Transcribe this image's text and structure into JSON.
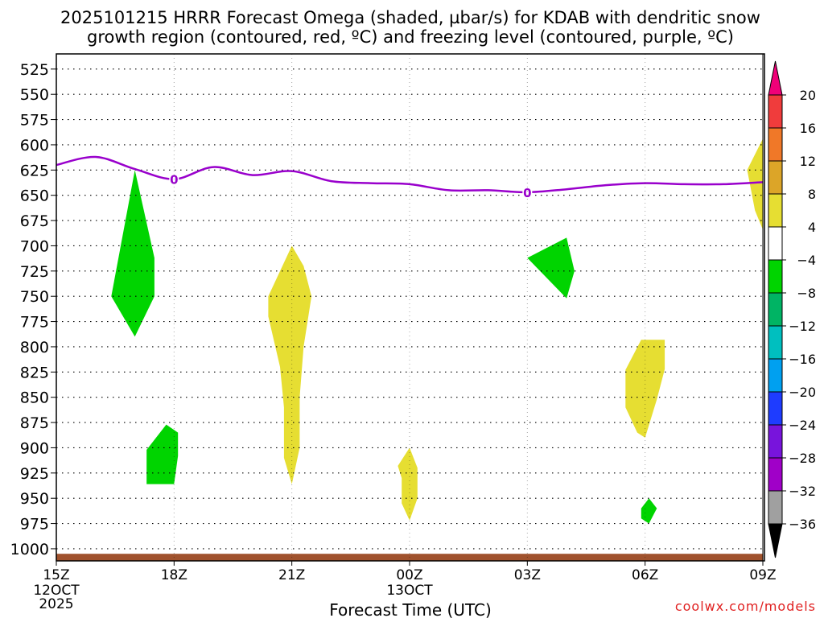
{
  "chart_data": {
    "type": "heatmap",
    "title_line1": "2025101215 HRRR Forecast Omega (shaded, µbar/s) for KDAB with dendritic snow",
    "title_line2": "growth region (contoured, red, ºC) and freezing level (contoured, purple, ºC)",
    "xlabel": "Forecast Time (UTC)",
    "credit": "coolwx.com/models",
    "x_range_hours": [
      0,
      18
    ],
    "y_range_hpa": [
      510,
      1012
    ],
    "x_ticks": [
      {
        "hour": 0,
        "label": "15Z",
        "date": "12OCT",
        "year": "2025"
      },
      {
        "hour": 3,
        "label": "18Z"
      },
      {
        "hour": 6,
        "label": "21Z"
      },
      {
        "hour": 9,
        "label": "00Z",
        "date": "13OCT"
      },
      {
        "hour": 12,
        "label": "03Z"
      },
      {
        "hour": 15,
        "label": "06Z"
      },
      {
        "hour": 18,
        "label": "09Z"
      }
    ],
    "pressure_levels": [
      525,
      550,
      575,
      600,
      625,
      650,
      675,
      700,
      725,
      750,
      775,
      800,
      825,
      850,
      875,
      900,
      925,
      950,
      975,
      1000
    ],
    "freezing_level": {
      "label": "0",
      "label_hours": [
        3,
        12
      ],
      "color": "#9900cc",
      "points": [
        [
          0,
          620
        ],
        [
          1,
          612
        ],
        [
          2,
          624
        ],
        [
          3,
          634
        ],
        [
          4,
          622
        ],
        [
          5,
          630
        ],
        [
          6,
          626
        ],
        [
          7,
          636
        ],
        [
          8,
          638
        ],
        [
          9,
          639
        ],
        [
          10,
          645
        ],
        [
          11,
          645
        ],
        [
          12,
          647
        ],
        [
          13,
          644
        ],
        [
          14,
          640
        ],
        [
          15,
          638
        ],
        [
          16,
          639
        ],
        [
          17,
          639
        ],
        [
          18,
          637
        ]
      ]
    },
    "omega_regions": [
      {
        "name": "green-upward-a",
        "bin": "-8 to -4",
        "color": "#00d400",
        "points": [
          [
            1.4,
            750
          ],
          [
            2.0,
            625
          ],
          [
            2.5,
            712
          ],
          [
            2.5,
            750
          ],
          [
            2.0,
            790
          ]
        ]
      },
      {
        "name": "green-upward-b",
        "bin": "-8 to -4",
        "color": "#00d400",
        "points": [
          [
            2.3,
            902
          ],
          [
            2.8,
            877
          ],
          [
            3.1,
            885
          ],
          [
            3.1,
            908
          ],
          [
            3.0,
            936
          ],
          [
            2.3,
            936
          ]
        ]
      },
      {
        "name": "yellow-downward-a",
        "bin": "4 to 8",
        "color": "#e6de32",
        "points": [
          [
            5.4,
            750
          ],
          [
            6.0,
            700
          ],
          [
            6.3,
            720
          ],
          [
            6.5,
            750
          ],
          [
            6.3,
            800
          ],
          [
            6.2,
            850
          ],
          [
            6.2,
            900
          ],
          [
            6.0,
            936
          ],
          [
            5.8,
            910
          ],
          [
            5.8,
            860
          ],
          [
            5.7,
            820
          ],
          [
            5.4,
            770
          ]
        ]
      },
      {
        "name": "yellow-downward-b",
        "bin": "4 to 8",
        "color": "#e6de32",
        "points": [
          [
            8.7,
            918
          ],
          [
            9.0,
            900
          ],
          [
            9.2,
            920
          ],
          [
            9.2,
            950
          ],
          [
            9.0,
            972
          ],
          [
            8.8,
            955
          ],
          [
            8.8,
            930
          ]
        ]
      },
      {
        "name": "green-upward-c",
        "bin": "-8 to -4",
        "color": "#00d400",
        "points": [
          [
            12.0,
            712
          ],
          [
            13.0,
            692
          ],
          [
            13.2,
            725
          ],
          [
            13.0,
            752
          ]
        ]
      },
      {
        "name": "yellow-downward-c",
        "bin": "4 to 8",
        "color": "#e6de32",
        "points": [
          [
            14.5,
            823
          ],
          [
            14.9,
            793
          ],
          [
            15.5,
            793
          ],
          [
            15.5,
            822
          ],
          [
            15.3,
            852
          ],
          [
            15.0,
            890
          ],
          [
            14.8,
            885
          ],
          [
            14.5,
            860
          ]
        ]
      },
      {
        "name": "green-upward-d",
        "bin": "-8 to -4",
        "color": "#00d400",
        "points": [
          [
            14.9,
            960
          ],
          [
            15.1,
            950
          ],
          [
            15.3,
            960
          ],
          [
            15.1,
            975
          ],
          [
            14.9,
            970
          ]
        ]
      },
      {
        "name": "yellow-downward-d",
        "bin": "4 to 8",
        "color": "#e6de32",
        "points": [
          [
            17.6,
            625
          ],
          [
            18.0,
            594
          ],
          [
            18.0,
            684
          ],
          [
            17.8,
            665
          ],
          [
            17.7,
            645
          ]
        ]
      }
    ],
    "ground_level_hpa": 1005,
    "colorbar": {
      "labels": [
        "20",
        "16",
        "12",
        "8",
        "4",
        "−4",
        "−8",
        "−12",
        "−16",
        "−20",
        "−24",
        "−28",
        "−32",
        "−36"
      ],
      "colors": [
        "#f00078",
        "#f03c3c",
        "#f07828",
        "#dca528",
        "#e6de32",
        "#ffffff",
        "#00d400",
        "#00b464",
        "#00bfbf",
        "#00a0f0",
        "#1e3cff",
        "#7814dc",
        "#a000c8",
        "#a0a0a0",
        "#000000"
      ]
    }
  }
}
